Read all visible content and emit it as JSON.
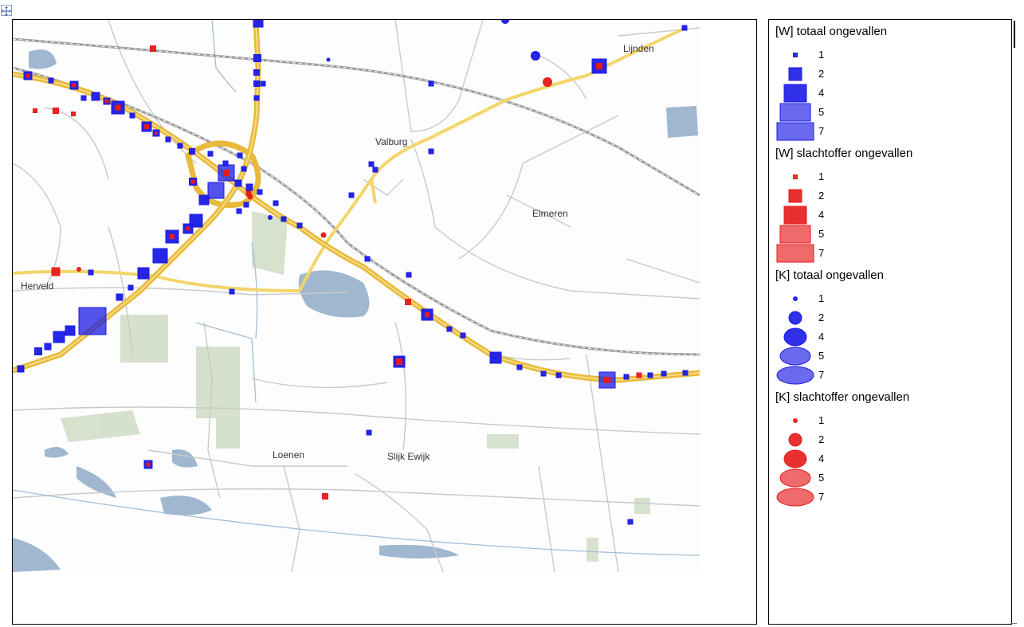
{
  "map": {
    "places": [
      {
        "name": "Lijnden"
      },
      {
        "name": "Valburg"
      },
      {
        "name": "Elmeren"
      },
      {
        "name": "Herveld"
      },
      {
        "name": "Loenen"
      },
      {
        "name": "Slijk Ewijk"
      }
    ],
    "colors": {
      "highway": "#e8b93a",
      "highway_light": "#f3d56a",
      "road": "#c9c9c9",
      "railway": "#9a9a9a",
      "water": "#9fb7cf",
      "green": "#cfdcc5",
      "blue_marker": "#1a1ae6",
      "red_marker": "#e61a1a"
    }
  },
  "legend": {
    "sections": [
      {
        "title": "[W] totaal ongevallen",
        "shape": "square",
        "color": "#1a1ae6",
        "values": [
          "1",
          "2",
          "4",
          "5",
          "7"
        ]
      },
      {
        "title": "[W] slachtoffer ongevallen",
        "shape": "square",
        "color": "#e61a1a",
        "values": [
          "1",
          "2",
          "4",
          "5",
          "7"
        ]
      },
      {
        "title": "[K] totaal ongevallen",
        "shape": "circle",
        "color": "#1a1ae6",
        "values": [
          "1",
          "2",
          "4",
          "5",
          "7"
        ]
      },
      {
        "title": "[K] slachtoffer ongevallen",
        "shape": "circle",
        "color": "#e61a1a",
        "values": [
          "1",
          "2",
          "4",
          "5",
          "7"
        ]
      }
    ]
  }
}
